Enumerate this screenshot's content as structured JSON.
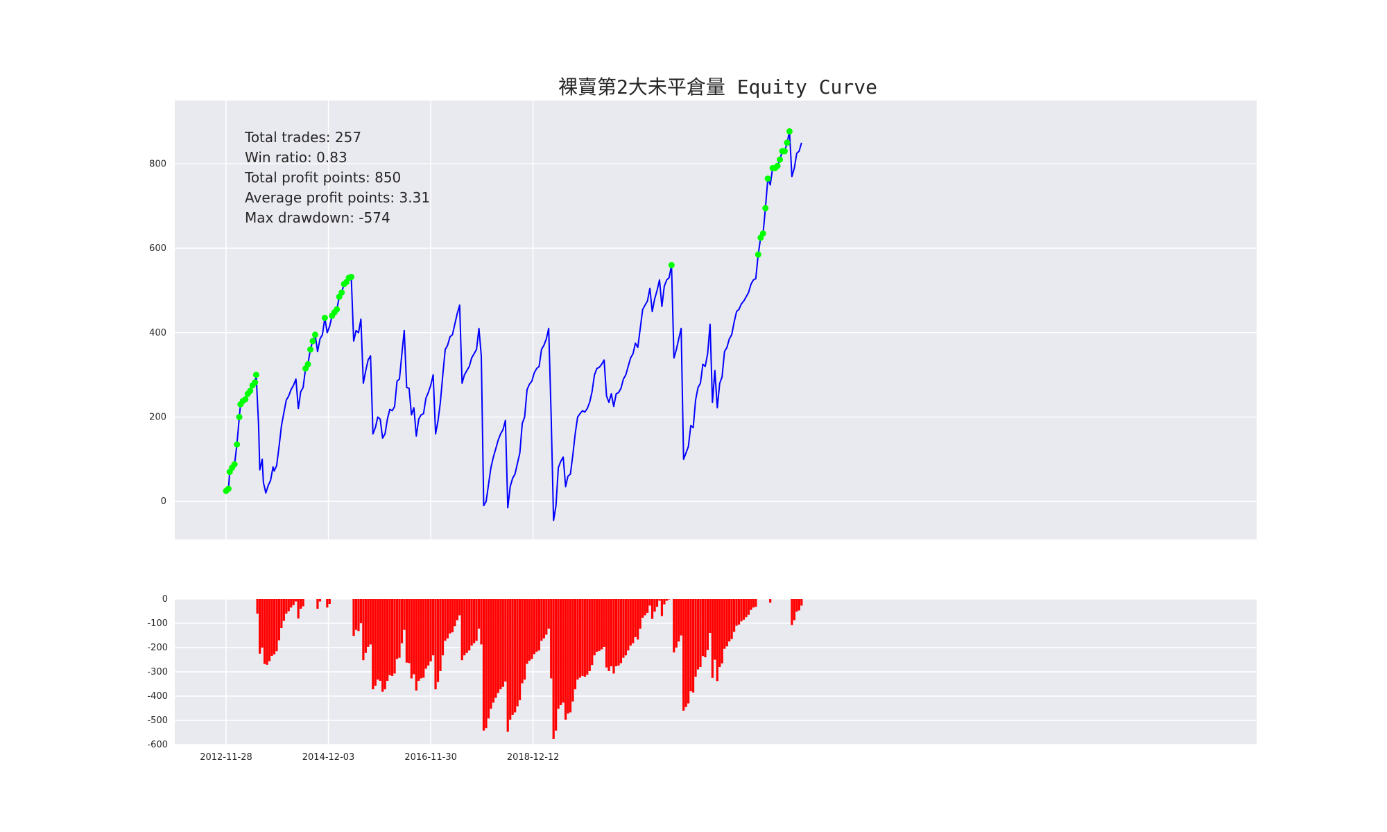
{
  "chart_data": [
    {
      "type": "line",
      "title": "裸賣第2大未平倉量 Equity Curve",
      "xlabel": "",
      "ylabel": "",
      "ylim": [
        -90,
        950
      ],
      "yticks": [
        0,
        200,
        400,
        600,
        800
      ],
      "xticks": [
        {
          "label": "2012-11-28",
          "trade_index": 0
        },
        {
          "label": "2014-12-03",
          "trade_index": 85
        },
        {
          "label": "2016-11-30",
          "trade_index": 170
        },
        {
          "label": "2018-12-12",
          "trade_index": 255
        }
      ],
      "grid": true,
      "background": "#e9e9f0",
      "line_color": "#0000ff",
      "marker_color": "#00ff00",
      "stats": [
        "Total trades: 257",
        "Win ratio: 0.83",
        "Total profit points: 850",
        "Average profit points: 3.31",
        "Max drawdown: -574"
      ],
      "anchors": [
        [
          0,
          25
        ],
        [
          2,
          30
        ],
        [
          3,
          70
        ],
        [
          5,
          80
        ],
        [
          7,
          88
        ],
        [
          9,
          135
        ],
        [
          11,
          200
        ],
        [
          12,
          230
        ],
        [
          14,
          238
        ],
        [
          16,
          242
        ],
        [
          18,
          255
        ],
        [
          20,
          262
        ],
        [
          22,
          275
        ],
        [
          24,
          282
        ],
        [
          25,
          300
        ],
        [
          27,
          180
        ],
        [
          28,
          75
        ],
        [
          30,
          100
        ],
        [
          31,
          45
        ],
        [
          33,
          20
        ],
        [
          35,
          38
        ],
        [
          37,
          50
        ],
        [
          39,
          82
        ],
        [
          40,
          72
        ],
        [
          42,
          85
        ],
        [
          44,
          130
        ],
        [
          46,
          180
        ],
        [
          48,
          210
        ],
        [
          50,
          240
        ],
        [
          52,
          250
        ],
        [
          54,
          265
        ],
        [
          56,
          275
        ],
        [
          58,
          290
        ],
        [
          60,
          220
        ],
        [
          62,
          260
        ],
        [
          64,
          270
        ],
        [
          66,
          315
        ],
        [
          68,
          325
        ],
        [
          70,
          360
        ],
        [
          72,
          380
        ],
        [
          74,
          395
        ],
        [
          76,
          355
        ],
        [
          78,
          385
        ],
        [
          80,
          395
        ],
        [
          82,
          435
        ],
        [
          84,
          400
        ],
        [
          86,
          415
        ],
        [
          88,
          440
        ],
        [
          90,
          448
        ],
        [
          92,
          455
        ],
        [
          94,
          485
        ],
        [
          96,
          495
        ],
        [
          98,
          515
        ],
        [
          100,
          520
        ],
        [
          102,
          530
        ],
        [
          104,
          532
        ],
        [
          106,
          380
        ],
        [
          108,
          405
        ],
        [
          110,
          400
        ],
        [
          112,
          432
        ],
        [
          114,
          280
        ],
        [
          116,
          310
        ],
        [
          118,
          335
        ],
        [
          120,
          345
        ],
        [
          122,
          160
        ],
        [
          124,
          175
        ],
        [
          126,
          200
        ],
        [
          128,
          195
        ],
        [
          130,
          150
        ],
        [
          132,
          160
        ],
        [
          134,
          195
        ],
        [
          136,
          218
        ],
        [
          138,
          215
        ],
        [
          140,
          225
        ],
        [
          142,
          285
        ],
        [
          144,
          290
        ],
        [
          146,
          350
        ],
        [
          148,
          405
        ],
        [
          150,
          270
        ],
        [
          152,
          268
        ],
        [
          154,
          205
        ],
        [
          156,
          222
        ],
        [
          158,
          155
        ],
        [
          160,
          195
        ],
        [
          162,
          205
        ],
        [
          164,
          208
        ],
        [
          166,
          245
        ],
        [
          168,
          258
        ],
        [
          170,
          275
        ],
        [
          172,
          300
        ],
        [
          174,
          160
        ],
        [
          176,
          190
        ],
        [
          178,
          235
        ],
        [
          180,
          300
        ],
        [
          182,
          360
        ],
        [
          184,
          370
        ],
        [
          186,
          390
        ],
        [
          188,
          395
        ],
        [
          190,
          420
        ],
        [
          192,
          445
        ],
        [
          194,
          465
        ],
        [
          196,
          280
        ],
        [
          198,
          300
        ],
        [
          200,
          310
        ],
        [
          202,
          320
        ],
        [
          204,
          340
        ],
        [
          206,
          350
        ],
        [
          208,
          360
        ],
        [
          210,
          410
        ],
        [
          212,
          345
        ],
        [
          214,
          -10
        ],
        [
          216,
          0
        ],
        [
          218,
          40
        ],
        [
          220,
          80
        ],
        [
          222,
          105
        ],
        [
          224,
          125
        ],
        [
          226,
          145
        ],
        [
          228,
          160
        ],
        [
          230,
          170
        ],
        [
          232,
          192
        ],
        [
          234,
          -15
        ],
        [
          236,
          35
        ],
        [
          238,
          55
        ],
        [
          240,
          65
        ],
        [
          242,
          90
        ],
        [
          244,
          115
        ],
        [
          246,
          185
        ],
        [
          248,
          200
        ],
        [
          250,
          265
        ],
        [
          252,
          278
        ],
        [
          254,
          285
        ],
        [
          256,
          305
        ],
        [
          258,
          315
        ],
        [
          260,
          320
        ],
        [
          262,
          360
        ],
        [
          264,
          370
        ],
        [
          266,
          385
        ],
        [
          268,
          410
        ],
        [
          270,
          205
        ],
        [
          272,
          -45
        ],
        [
          274,
          -10
        ],
        [
          276,
          80
        ],
        [
          278,
          95
        ],
        [
          280,
          105
        ],
        [
          282,
          35
        ],
        [
          284,
          60
        ],
        [
          286,
          65
        ],
        [
          288,
          110
        ],
        [
          290,
          160
        ],
        [
          292,
          200
        ],
        [
          294,
          208
        ],
        [
          296,
          215
        ],
        [
          298,
          212
        ],
        [
          300,
          220
        ],
        [
          302,
          235
        ],
        [
          304,
          260
        ],
        [
          306,
          300
        ],
        [
          308,
          315
        ],
        [
          310,
          318
        ],
        [
          312,
          325
        ],
        [
          314,
          335
        ],
        [
          316,
          250
        ],
        [
          318,
          235
        ],
        [
          320,
          255
        ],
        [
          322,
          225
        ],
        [
          324,
          255
        ],
        [
          326,
          258
        ],
        [
          328,
          268
        ],
        [
          330,
          290
        ],
        [
          332,
          300
        ],
        [
          334,
          320
        ],
        [
          336,
          340
        ],
        [
          338,
          350
        ],
        [
          340,
          375
        ],
        [
          342,
          365
        ],
        [
          344,
          410
        ],
        [
          346,
          455
        ],
        [
          348,
          465
        ],
        [
          350,
          475
        ],
        [
          352,
          505
        ],
        [
          354,
          450
        ],
        [
          356,
          480
        ],
        [
          358,
          500
        ],
        [
          360,
          525
        ],
        [
          362,
          462
        ],
        [
          364,
          510
        ],
        [
          366,
          525
        ],
        [
          368,
          530
        ],
        [
          370,
          560
        ],
        [
          372,
          340
        ],
        [
          374,
          360
        ],
        [
          376,
          385
        ],
        [
          378,
          410
        ],
        [
          380,
          100
        ],
        [
          382,
          115
        ],
        [
          384,
          130
        ],
        [
          386,
          180
        ],
        [
          388,
          175
        ],
        [
          390,
          240
        ],
        [
          392,
          270
        ],
        [
          394,
          280
        ],
        [
          396,
          325
        ],
        [
          398,
          320
        ],
        [
          400,
          350
        ],
        [
          402,
          420
        ],
        [
          404,
          235
        ],
        [
          406,
          310
        ],
        [
          408,
          222
        ],
        [
          410,
          280
        ],
        [
          412,
          295
        ],
        [
          414,
          355
        ],
        [
          416,
          365
        ],
        [
          418,
          385
        ],
        [
          420,
          395
        ],
        [
          422,
          425
        ],
        [
          424,
          450
        ],
        [
          426,
          455
        ],
        [
          428,
          468
        ],
        [
          430,
          475
        ],
        [
          432,
          485
        ],
        [
          434,
          495
        ],
        [
          436,
          515
        ],
        [
          438,
          525
        ],
        [
          440,
          528
        ],
        [
          442,
          585
        ],
        [
          444,
          625
        ],
        [
          446,
          635
        ],
        [
          448,
          695
        ],
        [
          450,
          765
        ],
        [
          452,
          750
        ],
        [
          454,
          790
        ],
        [
          456,
          790
        ],
        [
          458,
          795
        ],
        [
          460,
          810
        ],
        [
          462,
          830
        ],
        [
          464,
          830
        ],
        [
          466,
          850
        ],
        [
          468,
          877
        ],
        [
          470,
          770
        ],
        [
          472,
          790
        ],
        [
          474,
          825
        ],
        [
          476,
          830
        ],
        [
          478,
          850
        ]
      ],
      "markers": [
        [
          0,
          25
        ],
        [
          2,
          30
        ],
        [
          3,
          70
        ],
        [
          5,
          80
        ],
        [
          7,
          88
        ],
        [
          9,
          135
        ],
        [
          11,
          200
        ],
        [
          12,
          230
        ],
        [
          14,
          238
        ],
        [
          16,
          242
        ],
        [
          18,
          255
        ],
        [
          20,
          262
        ],
        [
          22,
          275
        ],
        [
          24,
          282
        ],
        [
          25,
          300
        ],
        [
          66,
          315
        ],
        [
          68,
          325
        ],
        [
          70,
          360
        ],
        [
          72,
          380
        ],
        [
          74,
          395
        ],
        [
          82,
          435
        ],
        [
          88,
          440
        ],
        [
          90,
          448
        ],
        [
          92,
          455
        ],
        [
          94,
          485
        ],
        [
          96,
          495
        ],
        [
          98,
          515
        ],
        [
          100,
          520
        ],
        [
          102,
          530
        ],
        [
          104,
          532
        ],
        [
          370,
          560
        ],
        [
          442,
          585
        ],
        [
          444,
          625
        ],
        [
          446,
          635
        ],
        [
          448,
          695
        ],
        [
          450,
          765
        ],
        [
          454,
          790
        ],
        [
          456,
          790
        ],
        [
          458,
          795
        ],
        [
          460,
          810
        ],
        [
          462,
          830
        ],
        [
          464,
          830
        ],
        [
          466,
          850
        ],
        [
          468,
          877
        ]
      ]
    },
    {
      "type": "bar",
      "title": "",
      "xlabel": "",
      "ylabel": "",
      "ylim": [
        -600,
        0
      ],
      "yticks": [
        0,
        -100,
        -200,
        -300,
        -400,
        -500,
        -600
      ],
      "bar_color": "#ff0000",
      "description": "Drawdown from running peak for each trade (only negative values drawn)"
    }
  ]
}
